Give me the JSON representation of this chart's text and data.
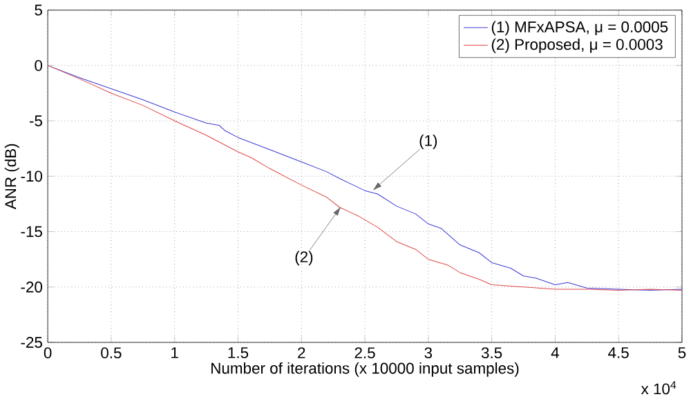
{
  "chart_data": {
    "type": "line",
    "xlabel": "Number of iterations (x 10000 input samples)",
    "ylabel": "ANR (dB)",
    "xlim": [
      0,
      5
    ],
    "ylim": [
      -25,
      5
    ],
    "xticks": [
      0,
      0.5,
      1,
      1.5,
      2,
      2.5,
      3,
      3.5,
      4,
      4.5,
      5
    ],
    "yticks": [
      -25,
      -20,
      -15,
      -10,
      -5,
      0,
      5
    ],
    "grid": true,
    "legend": "top right",
    "line_style": "solid",
    "marker": "none",
    "annotations": [
      {
        "text": "(1)",
        "x": 2.55,
        "y": -11.4
      },
      {
        "text": "(2)",
        "x": 2.32,
        "y": -12.6
      },
      "x 10$^{4}$"
    ],
    "series": [
      {
        "name": "(1) MFxAPSA, μ = 0.0005",
        "color": "#3a3ad8",
        "x": [
          0,
          0.25,
          0.5,
          0.75,
          1,
          1.25,
          1.35,
          1.4,
          1.5,
          1.75,
          2,
          2.2,
          2.3,
          2.5,
          2.6,
          2.75,
          2.9,
          3,
          3.1,
          3.25,
          3.4,
          3.5,
          3.65,
          3.75,
          3.85,
          4,
          4.1,
          4.25,
          4.5,
          4.75,
          5
        ],
        "values": [
          0,
          -1.1,
          -2.1,
          -3.1,
          -4.2,
          -5.2,
          -5.4,
          -5.9,
          -6.5,
          -7.6,
          -8.7,
          -9.6,
          -10.2,
          -11.3,
          -11.6,
          -12.7,
          -13.4,
          -14.3,
          -14.7,
          -16.2,
          -16.9,
          -17.8,
          -18.3,
          -19.0,
          -19.2,
          -19.8,
          -19.6,
          -20.1,
          -20.2,
          -20.3,
          -20.2
        ]
      },
      {
        "name": "(2) Proposed, μ = 0.0003",
        "color": "#e04848",
        "x": [
          0,
          0.25,
          0.5,
          0.75,
          1,
          1.25,
          1.5,
          1.6,
          1.75,
          2,
          2.2,
          2.3,
          2.45,
          2.6,
          2.75,
          2.9,
          3,
          3.15,
          3.25,
          3.4,
          3.5,
          3.75,
          4,
          4.25,
          4.5,
          4.75,
          5
        ],
        "values": [
          0,
          -1.2,
          -2.5,
          -3.6,
          -5.0,
          -6.3,
          -7.8,
          -8.3,
          -9.3,
          -10.8,
          -11.9,
          -12.8,
          -13.6,
          -14.6,
          -15.9,
          -16.6,
          -17.5,
          -18.0,
          -18.7,
          -19.3,
          -19.8,
          -20.0,
          -20.2,
          -20.2,
          -20.3,
          -20.2,
          -20.3
        ]
      }
    ]
  }
}
